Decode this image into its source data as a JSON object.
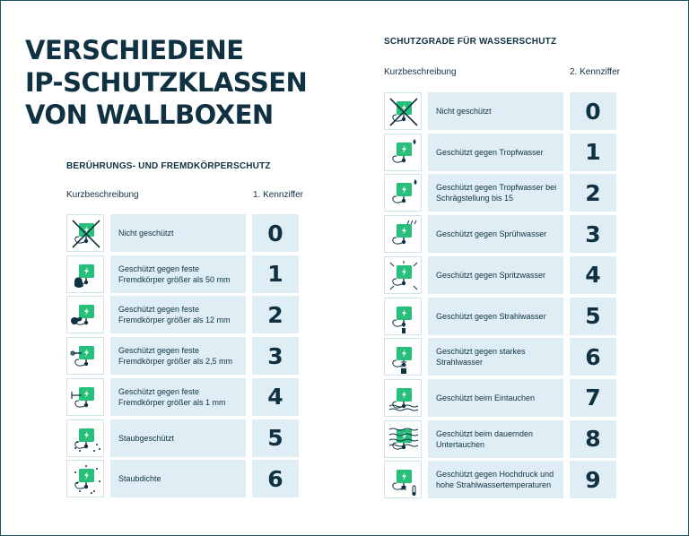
{
  "title": {
    "line1": "VERSCHIEDENE",
    "line2": "IP-SCHUTZKLASSEN",
    "line3": "VON WALLBOXEN"
  },
  "left": {
    "heading": "BERÜHRUNGS- UND FREMDKÖRPERSCHUTZ",
    "col_desc": "Kurzbeschreibung",
    "col_num": "1. Kennziffer",
    "rows": [
      {
        "desc": "Nicht geschützt",
        "num": "0",
        "icon": "crossed-out-wallbox-icon"
      },
      {
        "desc": "Geschützt gegen feste Fremdkörper größer als 50 mm",
        "num": "1",
        "icon": "hand-wallbox-icon"
      },
      {
        "desc": "Geschützt gegen feste Fremdkörper größer als 12 mm",
        "num": "2",
        "icon": "finger-wallbox-icon"
      },
      {
        "desc": "Geschützt gegen feste Fremdkörper größer als 2,5 mm",
        "num": "3",
        "icon": "tool-wallbox-icon"
      },
      {
        "desc": "Geschützt gegen feste Fremdkörper größer als 1 mm",
        "num": "4",
        "icon": "wire-wallbox-icon"
      },
      {
        "desc": "Staubgeschützt",
        "num": "5",
        "icon": "dust-wallbox-icon"
      },
      {
        "desc": "Staubdichte",
        "num": "6",
        "icon": "dust-tight-wallbox-icon"
      }
    ]
  },
  "right": {
    "heading": "SCHUTZGRADE FÜR WASSERSCHUTZ",
    "col_desc": "Kurzbeschreibung",
    "col_num": "2. Kennziffer",
    "rows": [
      {
        "desc": "Nicht geschützt",
        "num": "0",
        "icon": "crossed-out-wallbox-icon"
      },
      {
        "desc": "Geschützt gegen Tropfwasser",
        "num": "1",
        "icon": "drop-wallbox-icon"
      },
      {
        "desc": "Geschützt gegen Tropfwasser bei Schrägstellung bis 15",
        "num": "2",
        "icon": "tilted-drop-wallbox-icon"
      },
      {
        "desc": "Geschützt gegen Sprühwasser",
        "num": "3",
        "icon": "spray-wallbox-icon"
      },
      {
        "desc": "Geschützt gegen Spritzwasser",
        "num": "4",
        "icon": "splash-wallbox-icon"
      },
      {
        "desc": "Geschützt gegen Strahlwasser",
        "num": "5",
        "icon": "jet-wallbox-icon"
      },
      {
        "desc": "Geschützt gegen starkes Strahlwasser",
        "num": "6",
        "icon": "strong-jet-wallbox-icon"
      },
      {
        "desc": "Geschützt beim Eintauchen",
        "num": "7",
        "icon": "immersion-wallbox-icon"
      },
      {
        "desc": "Geschützt beim dauernden Untertauchen",
        "num": "8",
        "icon": "submersion-wallbox-icon"
      },
      {
        "desc": "Geschützt gegen Hochdruck und hohe Strahlwassertemperaturen",
        "num": "9",
        "icon": "high-pressure-wallbox-icon"
      }
    ]
  },
  "colors": {
    "accent_green": "#27c07a",
    "text_navy": "#0f3142",
    "cell_bg": "#deeef4"
  }
}
